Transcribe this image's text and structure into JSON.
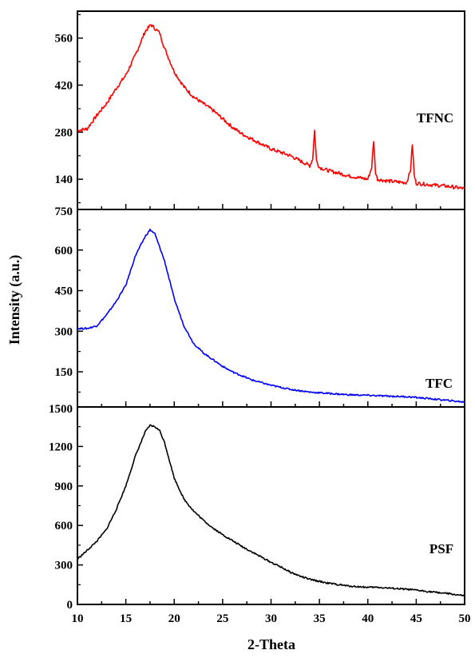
{
  "figure": {
    "xlabel": "2-Theta",
    "ylabel": "Intensity (a.u.)"
  },
  "chart_data": [
    {
      "type": "line",
      "name": "TFNC",
      "xlabel": "2-Theta",
      "ylabel": "Intensity (a.u.)",
      "xlim": [
        10,
        50
      ],
      "ylim": [
        50,
        640
      ],
      "xticks": [
        10,
        15,
        20,
        25,
        30,
        35,
        40,
        45,
        50
      ],
      "yticks": [
        140,
        280,
        420,
        560
      ],
      "color": "#ff0000",
      "series": [
        {
          "name": "TFNC",
          "x": [
            10,
            11,
            12,
            13,
            14,
            15,
            16,
            17,
            17.6,
            18.5,
            19,
            20,
            21,
            22,
            23,
            24,
            25,
            26,
            27,
            28,
            29,
            30,
            31,
            32,
            33,
            34,
            34.3,
            34.5,
            34.7,
            35,
            36,
            37,
            38,
            39,
            40,
            40.4,
            40.6,
            40.8,
            41,
            42,
            43,
            44,
            44.4,
            44.6,
            44.8,
            45,
            46,
            47,
            48,
            49,
            50
          ],
          "y": [
            285,
            290,
            330,
            365,
            410,
            450,
            510,
            580,
            600,
            575,
            530,
            460,
            415,
            385,
            365,
            345,
            320,
            295,
            275,
            260,
            245,
            230,
            220,
            210,
            195,
            180,
            200,
            285,
            195,
            175,
            165,
            158,
            150,
            145,
            140,
            175,
            255,
            160,
            140,
            135,
            132,
            130,
            165,
            245,
            150,
            128,
            125,
            122,
            120,
            116,
            112
          ]
        }
      ]
    },
    {
      "type": "line",
      "name": "TFC",
      "xlabel": "2-Theta",
      "ylabel": "Intensity (a.u.)",
      "xlim": [
        10,
        50
      ],
      "ylim": [
        20,
        750
      ],
      "xticks": [
        10,
        15,
        20,
        25,
        30,
        35,
        40,
        45,
        50
      ],
      "yticks": [
        150,
        300,
        450,
        600,
        750
      ],
      "color": "#0000ff",
      "series": [
        {
          "name": "TFC",
          "x": [
            10,
            11,
            12,
            13,
            14,
            15,
            16,
            17,
            17.5,
            18,
            19,
            20,
            21,
            22,
            23,
            24,
            25,
            26,
            27,
            28,
            29,
            30,
            32,
            34,
            36,
            38,
            40,
            42,
            44,
            46,
            48,
            50
          ],
          "y": [
            310,
            310,
            320,
            360,
            410,
            470,
            580,
            650,
            675,
            660,
            560,
            420,
            320,
            255,
            220,
            195,
            170,
            150,
            135,
            120,
            110,
            100,
            85,
            75,
            70,
            65,
            63,
            60,
            58,
            52,
            45,
            38
          ]
        }
      ]
    },
    {
      "type": "line",
      "name": "PSF",
      "xlabel": "2-Theta",
      "ylabel": "Intensity (a.u.)",
      "xlim": [
        10,
        50
      ],
      "ylim": [
        0,
        1500
      ],
      "xticks": [
        10,
        15,
        20,
        25,
        30,
        35,
        40,
        45,
        50
      ],
      "yticks": [
        0,
        300,
        600,
        900,
        1200,
        1500
      ],
      "color": "#000000",
      "series": [
        {
          "name": "PSF",
          "x": [
            10,
            11,
            12,
            13,
            14,
            15,
            16,
            17,
            17.5,
            18,
            18.5,
            19,
            20,
            21,
            22,
            23,
            24,
            25,
            26,
            27,
            28,
            29,
            30,
            31,
            32,
            33,
            34,
            35,
            36,
            37,
            38,
            39,
            40,
            41,
            42,
            43,
            44,
            45,
            46,
            47,
            48,
            49,
            50
          ],
          "y": [
            345,
            410,
            480,
            570,
            720,
            900,
            1130,
            1310,
            1360,
            1350,
            1320,
            1230,
            960,
            800,
            710,
            640,
            580,
            530,
            485,
            440,
            400,
            360,
            320,
            285,
            245,
            215,
            190,
            175,
            160,
            150,
            140,
            135,
            130,
            130,
            125,
            120,
            115,
            108,
            100,
            92,
            85,
            75,
            65
          ]
        }
      ]
    }
  ]
}
